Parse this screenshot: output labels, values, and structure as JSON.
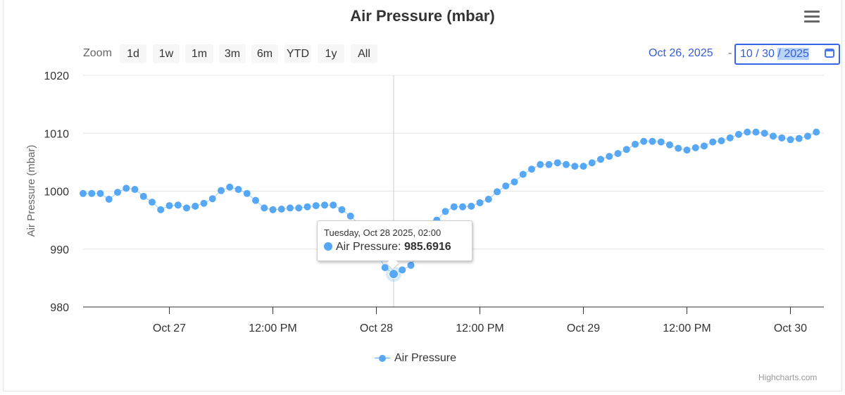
{
  "title": "Air Pressure (mbar)",
  "menu_icon": "hamburger-menu-icon",
  "range_selector": {
    "zoom_label": "Zoom",
    "buttons": [
      "1d",
      "1w",
      "1m",
      "3m",
      "6m",
      "YTD",
      "1y",
      "All"
    ],
    "from": "Oct 26, 2025",
    "separator": "-",
    "to": {
      "month": "10",
      "day": "30",
      "year": "2025",
      "sep": "/"
    }
  },
  "tooltip": {
    "date": "Tuesday, Oct 28 2025, 02:00",
    "series": "Air Pressure",
    "sep": ":",
    "value": "985.6916"
  },
  "credit": "Highcharts.com",
  "colors": {
    "series": "#56a8f5",
    "accent": "#335cdd"
  },
  "chart_data": {
    "type": "line",
    "title": "Air Pressure (mbar)",
    "ylabel": "Air Pressure (mbar)",
    "ylim": [
      980,
      1020
    ],
    "yticks": [
      "980",
      "990",
      "1000",
      "1010",
      "1020"
    ],
    "xticks": [
      {
        "t": "2025-10-27T00:00",
        "label": "Oct 27"
      },
      {
        "t": "2025-10-27T12:00",
        "label": "12:00 PM"
      },
      {
        "t": "2025-10-28T00:00",
        "label": "Oct 28"
      },
      {
        "t": "2025-10-28T12:00",
        "label": "12:00 PM"
      },
      {
        "t": "2025-10-29T00:00",
        "label": "Oct 29"
      },
      {
        "t": "2025-10-29T12:00",
        "label": "12:00 PM"
      },
      {
        "t": "2025-10-30T00:00",
        "label": "Oct 30"
      }
    ],
    "grid": true,
    "legend": "bottom-center",
    "series": [
      {
        "name": "Air Pressure",
        "x_start": "2025-10-26T14:00",
        "x_interval": "1 hour",
        "values": [
          999.6,
          999.6,
          999.6,
          998.6,
          999.8,
          1000.5,
          1000.3,
          999.1,
          998.1,
          996.8,
          997.5,
          997.6,
          997.1,
          997.4,
          997.9,
          998.7,
          1000.1,
          1000.7,
          1000.3,
          999.6,
          998.4,
          997.1,
          996.8,
          996.9,
          997.1,
          997.1,
          997.3,
          997.5,
          997.6,
          997.6,
          996.8,
          995.7,
          994.3,
          992.5,
          989.5,
          986.8,
          985.6916,
          986.4,
          987.2,
          989.5,
          992.5,
          995.0,
          996.5,
          997.3,
          997.3,
          997.4,
          998.0,
          998.6,
          999.9,
          1000.9,
          1001.6,
          1002.9,
          1003.8,
          1004.6,
          1004.6,
          1004.9,
          1004.6,
          1004.3,
          1004.3,
          1004.9,
          1005.5,
          1006.0,
          1006.5,
          1007.2,
          1008.1,
          1008.6,
          1008.6,
          1008.5,
          1008.0,
          1007.4,
          1007.1,
          1007.5,
          1007.8,
          1008.5,
          1008.7,
          1009.2,
          1009.8,
          1010.2,
          1010.2,
          1010.0,
          1009.5,
          1009.2,
          1008.9,
          1009.1,
          1009.5,
          1010.2
        ]
      }
    ],
    "highlighted": {
      "t": "2025-10-28T02:00",
      "value": 985.6916
    }
  }
}
